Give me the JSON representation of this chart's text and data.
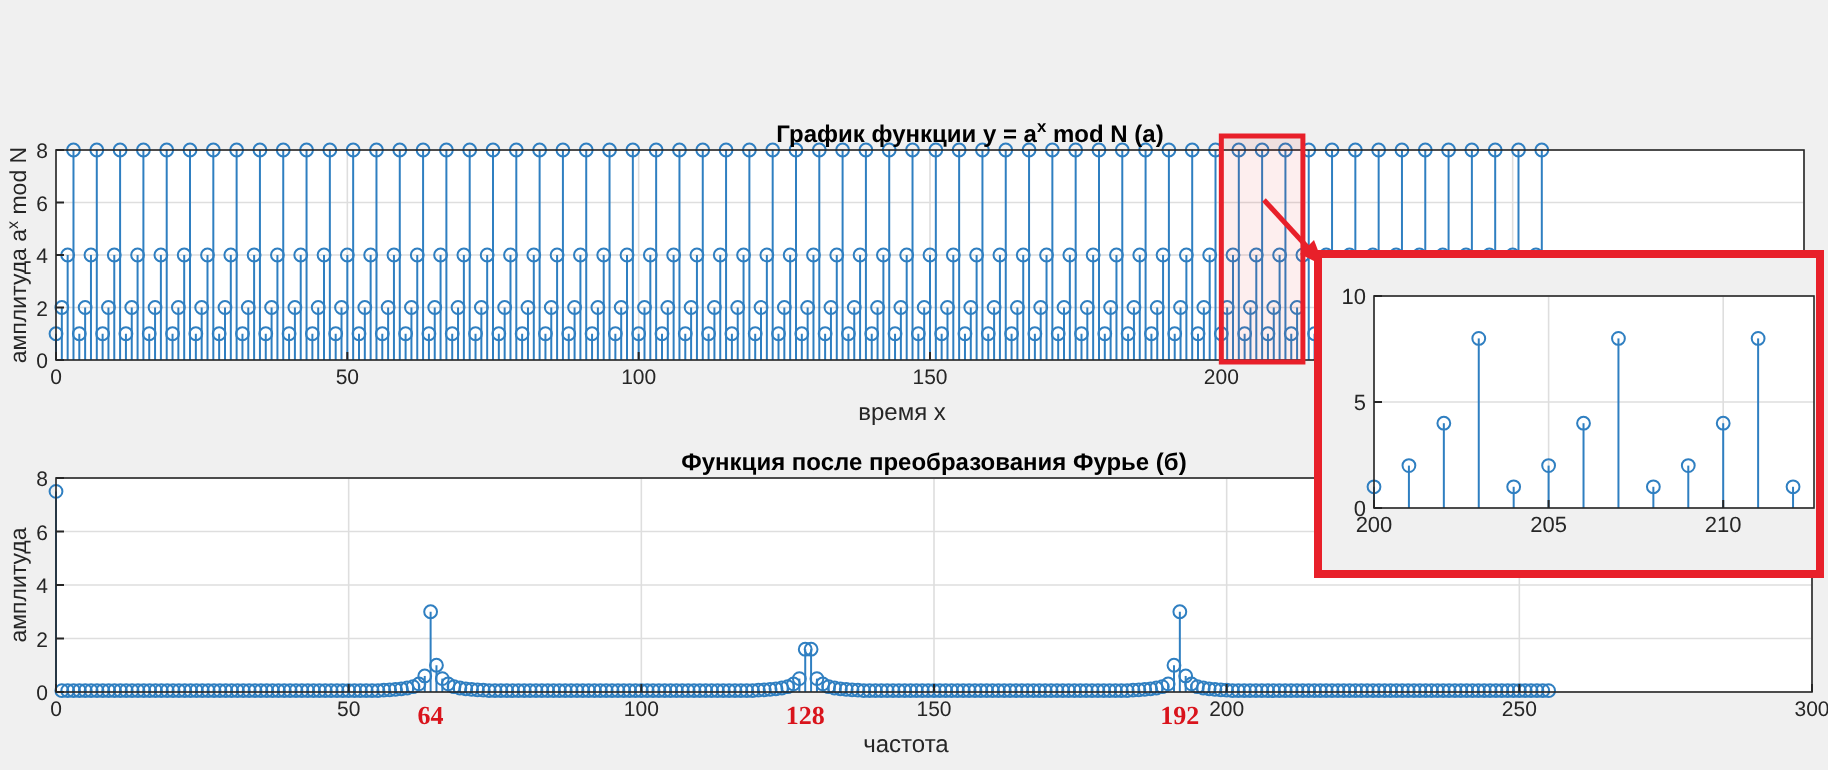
{
  "chart_data": [
    {
      "type": "lollipop",
      "title": "График функции y = a$^{x}$ mod N  (а)",
      "xlabel": "время x",
      "ylabel": "амплитуда a$^{x}$ mod N",
      "marker": "circle",
      "grid": true,
      "xlim": [
        0,
        300
      ],
      "xticks": [
        0,
        50,
        100,
        150,
        200,
        {
          "value": 250,
          "label": null
        },
        {
          "value": 300,
          "label": null
        }
      ],
      "ylim": [
        0,
        8
      ],
      "yticks": [
        0,
        2,
        4,
        6,
        8
      ],
      "bands": [
        {
          "axis": "x",
          "from": 200,
          "to": 214,
          "color": "#e8202a"
        }
      ],
      "series": [
        {
          "color": "#2f7fc1",
          "x": [
            0,
            1,
            2,
            3,
            4,
            5,
            6,
            7,
            8,
            9,
            10,
            11,
            12,
            13,
            14,
            15,
            16,
            17,
            18,
            19,
            20,
            21,
            22,
            23,
            24,
            25,
            26,
            27,
            28,
            29,
            30,
            31,
            32,
            33,
            34,
            35,
            36,
            37,
            38,
            39,
            40,
            41,
            42,
            43,
            44,
            45,
            46,
            47,
            48,
            49,
            50,
            51,
            52,
            53,
            54,
            55,
            56,
            57,
            58,
            59,
            60,
            61,
            62,
            63,
            64,
            65,
            66,
            67,
            68,
            69,
            70,
            71,
            72,
            73,
            74,
            75,
            76,
            77,
            78,
            79,
            80,
            81,
            82,
            83,
            84,
            85,
            86,
            87,
            88,
            89,
            90,
            91,
            92,
            93,
            94,
            95,
            96,
            97,
            98,
            99,
            100,
            101,
            102,
            103,
            104,
            105,
            106,
            107,
            108,
            109,
            110,
            111,
            112,
            113,
            114,
            115,
            116,
            117,
            118,
            119,
            120,
            121,
            122,
            123,
            124,
            125,
            126,
            127,
            128,
            129,
            130,
            131,
            132,
            133,
            134,
            135,
            136,
            137,
            138,
            139,
            140,
            141,
            142,
            143,
            144,
            145,
            146,
            147,
            148,
            149,
            150,
            151,
            152,
            153,
            154,
            155,
            156,
            157,
            158,
            159,
            160,
            161,
            162,
            163,
            164,
            165,
            166,
            167,
            168,
            169,
            170,
            171,
            172,
            173,
            174,
            175,
            176,
            177,
            178,
            179,
            180,
            181,
            182,
            183,
            184,
            185,
            186,
            187,
            188,
            189,
            190,
            191,
            192,
            193,
            194,
            195,
            196,
            197,
            198,
            199,
            200,
            201,
            202,
            203,
            204,
            205,
            206,
            207,
            208,
            209,
            210,
            211,
            212,
            213,
            214,
            215,
            216,
            218,
            219,
            222,
            223,
            226,
            227,
            230,
            231,
            234,
            235,
            238,
            239,
            242,
            243,
            246,
            247,
            250,
            251,
            254,
            255
          ],
          "values": [
            1,
            2,
            4,
            8,
            1,
            2,
            4,
            8,
            1,
            2,
            4,
            8,
            1,
            2,
            4,
            8,
            1,
            2,
            4,
            8,
            1,
            2,
            4,
            8,
            1,
            2,
            4,
            8,
            1,
            2,
            4,
            8,
            1,
            2,
            4,
            8,
            1,
            2,
            4,
            8,
            1,
            2,
            4,
            8,
            1,
            2,
            4,
            8,
            1,
            2,
            4,
            8,
            1,
            2,
            4,
            8,
            1,
            2,
            4,
            8,
            1,
            2,
            4,
            8,
            1,
            2,
            4,
            8,
            1,
            2,
            4,
            8,
            1,
            2,
            4,
            8,
            1,
            2,
            4,
            8,
            1,
            2,
            4,
            8,
            1,
            2,
            4,
            8,
            1,
            2,
            4,
            8,
            1,
            2,
            4,
            8,
            1,
            2,
            4,
            8,
            1,
            2,
            4,
            8,
            1,
            2,
            4,
            8,
            1,
            2,
            4,
            8,
            1,
            2,
            4,
            8,
            1,
            2,
            4,
            8,
            1,
            2,
            4,
            8,
            1,
            2,
            4,
            8,
            1,
            2,
            4,
            8,
            1,
            2,
            4,
            8,
            1,
            2,
            4,
            8,
            1,
            2,
            4,
            8,
            1,
            2,
            4,
            8,
            1,
            2,
            4,
            8,
            1,
            2,
            4,
            8,
            1,
            2,
            4,
            8,
            1,
            2,
            4,
            8,
            1,
            2,
            4,
            8,
            1,
            2,
            4,
            8,
            1,
            2,
            4,
            8,
            1,
            2,
            4,
            8,
            1,
            2,
            4,
            8,
            1,
            2,
            4,
            8,
            1,
            2,
            4,
            8,
            1,
            2,
            4,
            8,
            1,
            2,
            4,
            8,
            1,
            2,
            4,
            8,
            1,
            2,
            4,
            8,
            1,
            2,
            4,
            8,
            1,
            2,
            4,
            8,
            1,
            4,
            8,
            4,
            8,
            4,
            8,
            4,
            8,
            4,
            8,
            4,
            8,
            4,
            8,
            4,
            8,
            4,
            8,
            4,
            8
          ]
        }
      ]
    },
    {
      "type": "lollipop",
      "title": "Функция после преобразования Фурье (б)",
      "xlabel": "частота",
      "ylabel": "амплитуда",
      "marker": "circle",
      "grid": true,
      "xlim": [
        0,
        300
      ],
      "xticks": [
        0,
        50,
        100,
        150,
        200,
        250,
        300
      ],
      "ylim": [
        0,
        8
      ],
      "yticks": [
        0,
        2,
        4,
        6,
        8
      ],
      "annotations": [
        {
          "text": "64",
          "x": 64,
          "y": 0
        },
        {
          "text": "128",
          "x": 128,
          "y": 0
        },
        {
          "text": "192",
          "x": 192,
          "y": 0
        }
      ],
      "series": [
        {
          "color": "#2f7fc1",
          "x": [
            0,
            1,
            2,
            3,
            4,
            5,
            6,
            7,
            8,
            9,
            10,
            11,
            12,
            13,
            14,
            15,
            16,
            17,
            18,
            19,
            20,
            21,
            22,
            23,
            24,
            25,
            26,
            27,
            28,
            29,
            30,
            31,
            32,
            33,
            34,
            35,
            36,
            37,
            38,
            39,
            40,
            41,
            42,
            43,
            44,
            45,
            46,
            47,
            48,
            49,
            50,
            51,
            52,
            53,
            54,
            55,
            56,
            57,
            58,
            59,
            60,
            61,
            62,
            63,
            64,
            65,
            66,
            67,
            68,
            69,
            70,
            71,
            72,
            73,
            74,
            75,
            76,
            77,
            78,
            79,
            80,
            81,
            82,
            83,
            84,
            85,
            86,
            87,
            88,
            89,
            90,
            91,
            92,
            93,
            94,
            95,
            96,
            97,
            98,
            99,
            100,
            101,
            102,
            103,
            104,
            105,
            106,
            107,
            108,
            109,
            110,
            111,
            112,
            113,
            114,
            115,
            116,
            117,
            118,
            119,
            120,
            121,
            122,
            123,
            124,
            125,
            126,
            127,
            128,
            129,
            130,
            131,
            132,
            133,
            134,
            135,
            136,
            137,
            138,
            139,
            140,
            141,
            142,
            143,
            144,
            145,
            146,
            147,
            148,
            149,
            150,
            151,
            152,
            153,
            154,
            155,
            156,
            157,
            158,
            159,
            160,
            161,
            162,
            163,
            164,
            165,
            166,
            167,
            168,
            169,
            170,
            171,
            172,
            173,
            174,
            175,
            176,
            177,
            178,
            179,
            180,
            181,
            182,
            183,
            184,
            185,
            186,
            187,
            188,
            189,
            190,
            191,
            192,
            193,
            194,
            195,
            196,
            197,
            198,
            199,
            200,
            201,
            202,
            203,
            204,
            205,
            206,
            207,
            208,
            209,
            210,
            211,
            212,
            213,
            214,
            215,
            216,
            217,
            218,
            219,
            220,
            221,
            222,
            223,
            224,
            225,
            226,
            227,
            228,
            229,
            230,
            231,
            232,
            233,
            234,
            235,
            236,
            237,
            238,
            239,
            240,
            241,
            242,
            243,
            244,
            245,
            246,
            247,
            248,
            249,
            250,
            251,
            252,
            253,
            254,
            255
          ],
          "values": [
            7.5,
            0.05,
            0.05,
            0.05,
            0.05,
            0.05,
            0.05,
            0.05,
            0.05,
            0.05,
            0.05,
            0.05,
            0.05,
            0.05,
            0.05,
            0.05,
            0.05,
            0.05,
            0.05,
            0.05,
            0.05,
            0.05,
            0.05,
            0.05,
            0.05,
            0.05,
            0.05,
            0.05,
            0.05,
            0.05,
            0.05,
            0.05,
            0.05,
            0.05,
            0.05,
            0.05,
            0.05,
            0.05,
            0.05,
            0.05,
            0.05,
            0.05,
            0.05,
            0.05,
            0.05,
            0.05,
            0.05,
            0.05,
            0.05,
            0.05,
            0.05,
            0.05,
            0.05,
            0.05,
            0.05,
            0.05,
            0.07,
            0.08,
            0.1,
            0.12,
            0.15,
            0.2,
            0.3,
            0.6,
            3,
            1,
            0.5,
            0.3,
            0.2,
            0.15,
            0.12,
            0.1,
            0.08,
            0.07,
            0.05,
            0.05,
            0.05,
            0.05,
            0.05,
            0.05,
            0.05,
            0.05,
            0.05,
            0.05,
            0.05,
            0.05,
            0.05,
            0.05,
            0.05,
            0.05,
            0.05,
            0.05,
            0.05,
            0.05,
            0.05,
            0.05,
            0.05,
            0.05,
            0.05,
            0.05,
            0.05,
            0.05,
            0.05,
            0.05,
            0.05,
            0.05,
            0.05,
            0.05,
            0.05,
            0.05,
            0.05,
            0.05,
            0.05,
            0.05,
            0.05,
            0.05,
            0.05,
            0.05,
            0.05,
            0.05,
            0.07,
            0.08,
            0.1,
            0.12,
            0.15,
            0.2,
            0.3,
            0.5,
            1.6,
            1.6,
            0.5,
            0.3,
            0.2,
            0.15,
            0.12,
            0.1,
            0.08,
            0.07,
            0.05,
            0.05,
            0.05,
            0.05,
            0.05,
            0.05,
            0.05,
            0.05,
            0.05,
            0.05,
            0.05,
            0.05,
            0.05,
            0.05,
            0.05,
            0.05,
            0.05,
            0.05,
            0.05,
            0.05,
            0.05,
            0.05,
            0.05,
            0.05,
            0.05,
            0.05,
            0.05,
            0.05,
            0.05,
            0.05,
            0.05,
            0.05,
            0.05,
            0.05,
            0.05,
            0.05,
            0.05,
            0.05,
            0.05,
            0.05,
            0.05,
            0.05,
            0.05,
            0.05,
            0.05,
            0.05,
            0.07,
            0.08,
            0.1,
            0.12,
            0.15,
            0.2,
            0.3,
            1,
            3,
            0.6,
            0.3,
            0.2,
            0.15,
            0.12,
            0.1,
            0.08,
            0.07,
            0.05,
            0.05,
            0.05,
            0.05,
            0.05,
            0.05,
            0.05,
            0.05,
            0.05,
            0.05,
            0.05,
            0.05,
            0.05,
            0.05,
            0.05,
            0.05,
            0.05,
            0.05,
            0.05,
            0.05,
            0.05,
            0.05,
            0.05,
            0.05,
            0.05,
            0.05,
            0.05,
            0.05,
            0.05,
            0.05,
            0.05,
            0.05,
            0.05,
            0.05,
            0.05,
            0.05,
            0.05,
            0.05,
            0.05,
            0.05,
            0.05,
            0.05,
            0.05,
            0.05,
            0.05,
            0.05,
            0.05,
            0.05,
            0.05,
            0.05,
            0.05,
            0.05,
            0.05,
            0.05,
            0.05
          ]
        }
      ]
    },
    {
      "type": "lollipop",
      "marker": "circle",
      "grid": true,
      "xlim": [
        200,
        212.6
      ],
      "xticks": [
        200,
        205,
        210
      ],
      "ylim": [
        0,
        10
      ],
      "yticks": [
        0,
        5,
        10
      ],
      "series": [
        {
          "color": "#2f7fc1",
          "x": [
            200,
            201,
            202,
            203,
            204,
            205,
            206,
            207,
            208,
            209,
            210,
            211,
            212
          ],
          "values": [
            1,
            2,
            4,
            8,
            1,
            2,
            4,
            8,
            1,
            2,
            4,
            8,
            1
          ]
        }
      ]
    }
  ]
}
